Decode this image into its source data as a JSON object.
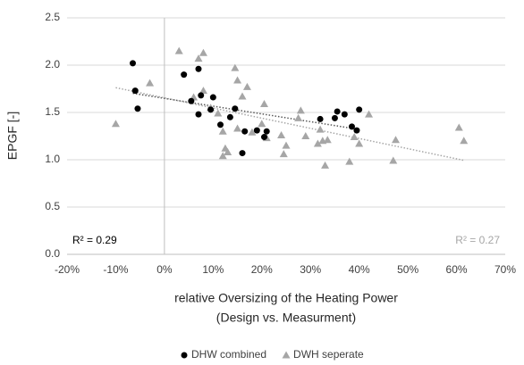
{
  "chart_data": {
    "type": "scatter",
    "x_label": [
      "relative Oversizing of the Heating Power",
      "(Design vs. Measurment)"
    ],
    "y_label": "EPGF [-]",
    "xlim": [
      -20,
      70
    ],
    "xticks": [
      {
        "value": -20,
        "label": "-20%"
      },
      {
        "value": -10,
        "label": "-10%"
      },
      {
        "value": 0,
        "label": "0%"
      },
      {
        "value": 10,
        "label": "10%"
      },
      {
        "value": 20,
        "label": "20%"
      },
      {
        "value": 30,
        "label": "30%"
      },
      {
        "value": 40,
        "label": "40%"
      },
      {
        "value": 50,
        "label": "50%"
      },
      {
        "value": 60,
        "label": "60%"
      },
      {
        "value": 70,
        "label": "70%"
      }
    ],
    "ylim": [
      0,
      2.5
    ],
    "yticks": [
      {
        "value": 0,
        "label": "0.0"
      },
      {
        "value": 0.5,
        "label": "0.5"
      },
      {
        "value": 1,
        "label": "1.0"
      },
      {
        "value": 1.5,
        "label": "1.5"
      },
      {
        "value": 2,
        "label": "2.0"
      },
      {
        "value": 2.5,
        "label": "2.5"
      }
    ],
    "grid": true,
    "series": [
      {
        "name": "DHW combined",
        "color": "#000000",
        "marker": "circle",
        "trendline": true,
        "x": [
          -6.5,
          -6,
          -5.5,
          4,
          5.5,
          7,
          7.5,
          7,
          9.5,
          10,
          11.5,
          13.5,
          14.5,
          16,
          16.5,
          19,
          20.5,
          21,
          32,
          35,
          35.5,
          37,
          38.5,
          39.5,
          40
        ],
        "values": [
          2.02,
          1.73,
          1.54,
          1.9,
          1.62,
          1.96,
          1.68,
          1.48,
          1.53,
          1.66,
          1.37,
          1.45,
          1.54,
          1.07,
          1.3,
          1.31,
          1.24,
          1.3,
          1.43,
          1.44,
          1.51,
          1.48,
          1.35,
          1.31,
          1.53
        ]
      },
      {
        "name": "DWH seperate",
        "color": "#a6a6a6",
        "marker": "triangle",
        "trendline": true,
        "x": [
          -10,
          -3,
          3,
          7,
          8,
          6,
          8,
          9.5,
          11,
          12,
          12.5,
          13,
          12,
          14.5,
          15,
          16,
          17,
          15,
          18,
          20,
          20.5,
          21,
          24,
          24.5,
          25,
          27.5,
          28,
          29,
          31.5,
          32.5,
          33,
          33.5,
          32,
          38,
          39,
          40,
          42,
          47,
          47.5,
          60.5,
          61.5
        ],
        "values": [
          1.38,
          1.81,
          2.15,
          2.07,
          2.13,
          1.66,
          1.73,
          1.55,
          1.49,
          1.04,
          1.12,
          1.08,
          1.3,
          1.97,
          1.84,
          1.67,
          1.77,
          1.33,
          1.29,
          1.38,
          1.59,
          1.23,
          1.26,
          1.06,
          1.15,
          1.44,
          1.52,
          1.25,
          1.17,
          1.2,
          0.94,
          1.21,
          1.32,
          0.98,
          1.24,
          1.17,
          1.48,
          0.99,
          1.21,
          1.34,
          1.2
        ]
      }
    ],
    "annotations": [
      {
        "text": "R² = 0.29",
        "series": 0
      },
      {
        "text": "R² = 0.27",
        "series": 1
      }
    ],
    "legend": "bottom"
  }
}
